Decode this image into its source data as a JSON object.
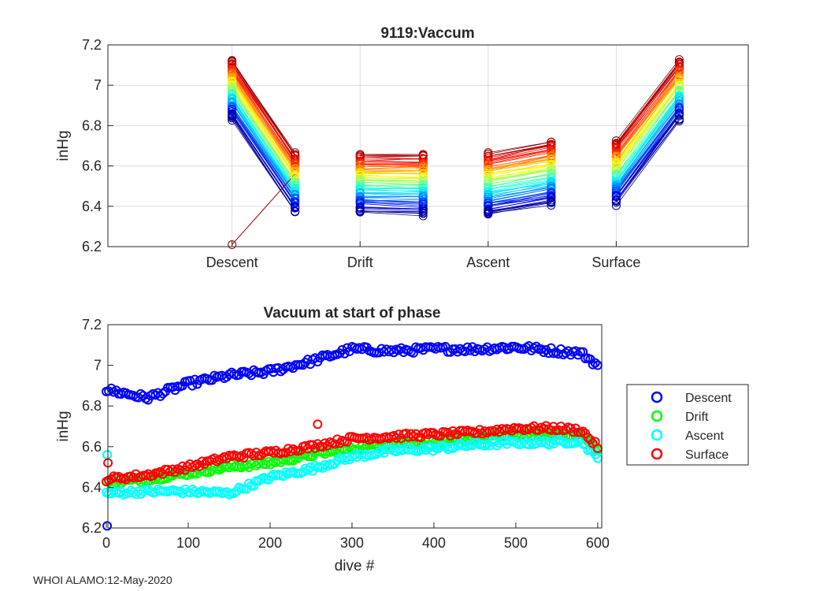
{
  "footer": "WHOI ALAMO:12-May-2020",
  "colors": {
    "descent": "#0000ff",
    "drift": "#00ff00",
    "ascent": "#00ffff",
    "surface": "#ff0000",
    "outlier": "#8b0000",
    "axis": "#262626",
    "grid": "#dcdcdc"
  },
  "chart_data": [
    {
      "type": "line",
      "title": "9119:Vaccum",
      "xlabel": "",
      "ylabel": "inHg",
      "categories": [
        "Descent",
        "Drift",
        "Ascent",
        "Surface"
      ],
      "ylim": [
        6.2,
        7.2
      ],
      "yticks": [
        "6.2",
        "6.4",
        "6.6",
        "6.8",
        "7",
        "7.2"
      ],
      "grid": true,
      "description_of_series": "one line per dive (~600 dives) connecting start and end vacuum of each phase; color runs from dark blue (early dives, low vacuum offsets) to dark red (late dives)",
      "phase_ranges": {
        "Descent": {
          "start": [
            6.83,
            7.12
          ],
          "end": [
            6.37,
            6.66
          ]
        },
        "Drift": {
          "start": [
            6.37,
            6.66
          ],
          "end": [
            6.36,
            6.66
          ]
        },
        "Ascent": {
          "start": [
            6.36,
            6.66
          ],
          "end": [
            6.41,
            6.72
          ]
        },
        "Surface": {
          "start": [
            6.41,
            6.72
          ],
          "end": [
            6.83,
            7.12
          ]
        }
      },
      "outlier": {
        "descent_start": 6.21,
        "descent_end": 6.56
      }
    },
    {
      "type": "scatter",
      "title": "Vacuum at start of phase",
      "xlabel": "dive #",
      "ylabel": "inHg",
      "xlim": [
        0,
        600
      ],
      "ylim": [
        6.2,
        7.2
      ],
      "xticks": [
        "0",
        "100",
        "200",
        "300",
        "400",
        "500",
        "600"
      ],
      "yticks": [
        "6.2",
        "6.4",
        "6.6",
        "6.8",
        "7",
        "7.2"
      ],
      "legend": [
        "Descent",
        "Drift",
        "Ascent",
        "Surface"
      ],
      "legend_position": "outside-right",
      "series": [
        {
          "name": "Descent",
          "x": [
            0,
            50,
            100,
            150,
            200,
            250,
            300,
            350,
            400,
            450,
            500,
            550,
            580,
            600
          ],
          "y": [
            6.88,
            6.84,
            6.91,
            6.95,
            6.97,
            7.02,
            7.08,
            7.07,
            7.08,
            7.08,
            7.09,
            7.07,
            7.06,
            7.0
          ],
          "outliers": [
            {
              "x": 1,
              "y": 6.21
            }
          ]
        },
        {
          "name": "Drift",
          "x": [
            0,
            50,
            100,
            150,
            200,
            250,
            300,
            350,
            400,
            450,
            500,
            550,
            580,
            600
          ],
          "y": [
            6.42,
            6.44,
            6.47,
            6.5,
            6.52,
            6.56,
            6.59,
            6.62,
            6.62,
            6.64,
            6.66,
            6.66,
            6.66,
            6.58
          ],
          "outliers": [
            {
              "x": 1,
              "y": 6.56
            }
          ]
        },
        {
          "name": "Ascent",
          "x": [
            0,
            50,
            100,
            150,
            200,
            250,
            300,
            350,
            400,
            450,
            500,
            550,
            580,
            600
          ],
          "y": [
            6.37,
            6.38,
            6.38,
            6.37,
            6.45,
            6.49,
            6.55,
            6.58,
            6.59,
            6.61,
            6.62,
            6.62,
            6.63,
            6.54
          ],
          "outliers": [
            {
              "x": 1,
              "y": 6.56
            }
          ]
        },
        {
          "name": "Surface",
          "x": [
            0,
            50,
            100,
            150,
            200,
            250,
            300,
            350,
            400,
            450,
            500,
            550,
            580,
            600
          ],
          "y": [
            6.44,
            6.46,
            6.5,
            6.55,
            6.57,
            6.6,
            6.64,
            6.65,
            6.66,
            6.67,
            6.69,
            6.69,
            6.68,
            6.6
          ],
          "outliers": [
            {
              "x": 2,
              "y": 6.52
            },
            {
              "x": 258,
              "y": 6.71
            }
          ]
        }
      ]
    }
  ]
}
